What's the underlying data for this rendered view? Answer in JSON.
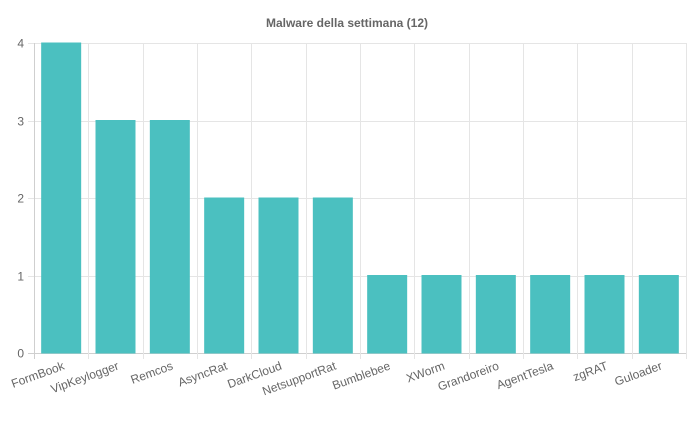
{
  "chart_data": {
    "type": "bar",
    "title": "Malware della settimana (12)",
    "categories": [
      "FormBook",
      "VipKeylogger",
      "Remcos",
      "AsyncRat",
      "DarkCloud",
      "NetsupportRat",
      "Bumblebee",
      "XWorm",
      "Grandoreiro",
      "AgentTesla",
      "zgRAT",
      "Guloader"
    ],
    "values": [
      4,
      3,
      3,
      2,
      2,
      2,
      1,
      1,
      1,
      1,
      1,
      1
    ],
    "ylim": [
      0,
      4
    ],
    "yticks": [
      "0",
      "1",
      "2",
      "3",
      "4"
    ],
    "grid": true,
    "legend": "none",
    "colors": {
      "bar_fill": "#4bc0c0",
      "bar_stroke": "#4bc0c0",
      "grid": "#e5e5e5",
      "text": "#666666"
    }
  }
}
